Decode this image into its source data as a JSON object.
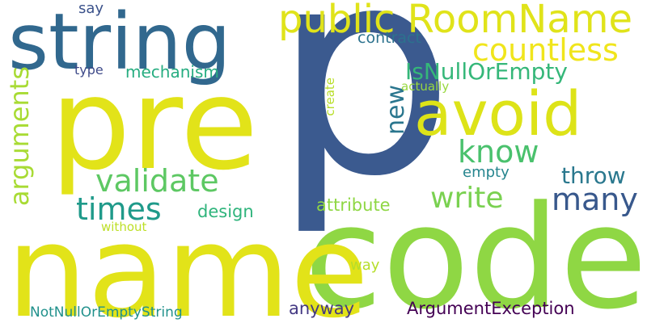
{
  "words": [
    {
      "text": "p",
      "color": "#3b5a8f"
    },
    {
      "text": "code",
      "color": "#8fd744"
    },
    {
      "text": "name",
      "color": "#e2e319"
    },
    {
      "text": "pre",
      "color": "#e2e319"
    },
    {
      "text": "string",
      "color": "#31688e"
    },
    {
      "text": "avoid",
      "color": "#dde318"
    },
    {
      "text": "public RoomName",
      "color": "#e0e31a"
    },
    {
      "text": "countless",
      "color": "#f0e51c"
    },
    {
      "text": "validate",
      "color": "#5dc863"
    },
    {
      "text": "IsNullOrEmpty",
      "color": "#35b779"
    },
    {
      "text": "arguments",
      "color": "#a8db34"
    },
    {
      "text": "know",
      "color": "#4ac16d"
    },
    {
      "text": "write",
      "color": "#7ad151"
    },
    {
      "text": "times",
      "color": "#1f9a8a"
    },
    {
      "text": "many",
      "color": "#38588c"
    },
    {
      "text": "throw",
      "color": "#2a788e"
    },
    {
      "text": "new",
      "color": "#2a768e"
    },
    {
      "text": "mechanism",
      "color": "#27ad81"
    },
    {
      "text": "design",
      "color": "#2fb47c"
    },
    {
      "text": "attribute",
      "color": "#8fd744"
    },
    {
      "text": "anyway",
      "color": "#443983"
    },
    {
      "text": "ArgumentException",
      "color": "#440154"
    },
    {
      "text": "NotNullOrEmptyString",
      "color": "#21918c"
    },
    {
      "text": "contract",
      "color": "#2c728e"
    },
    {
      "text": "say",
      "color": "#3b528b"
    },
    {
      "text": "empty",
      "color": "#25858e"
    },
    {
      "text": "type",
      "color": "#3e4a89"
    },
    {
      "text": "way",
      "color": "#b5de2b"
    },
    {
      "text": "actually",
      "color": "#98d83e"
    },
    {
      "text": "create",
      "color": "#b8de29"
    },
    {
      "text": "without",
      "color": "#bddf26"
    }
  ]
}
